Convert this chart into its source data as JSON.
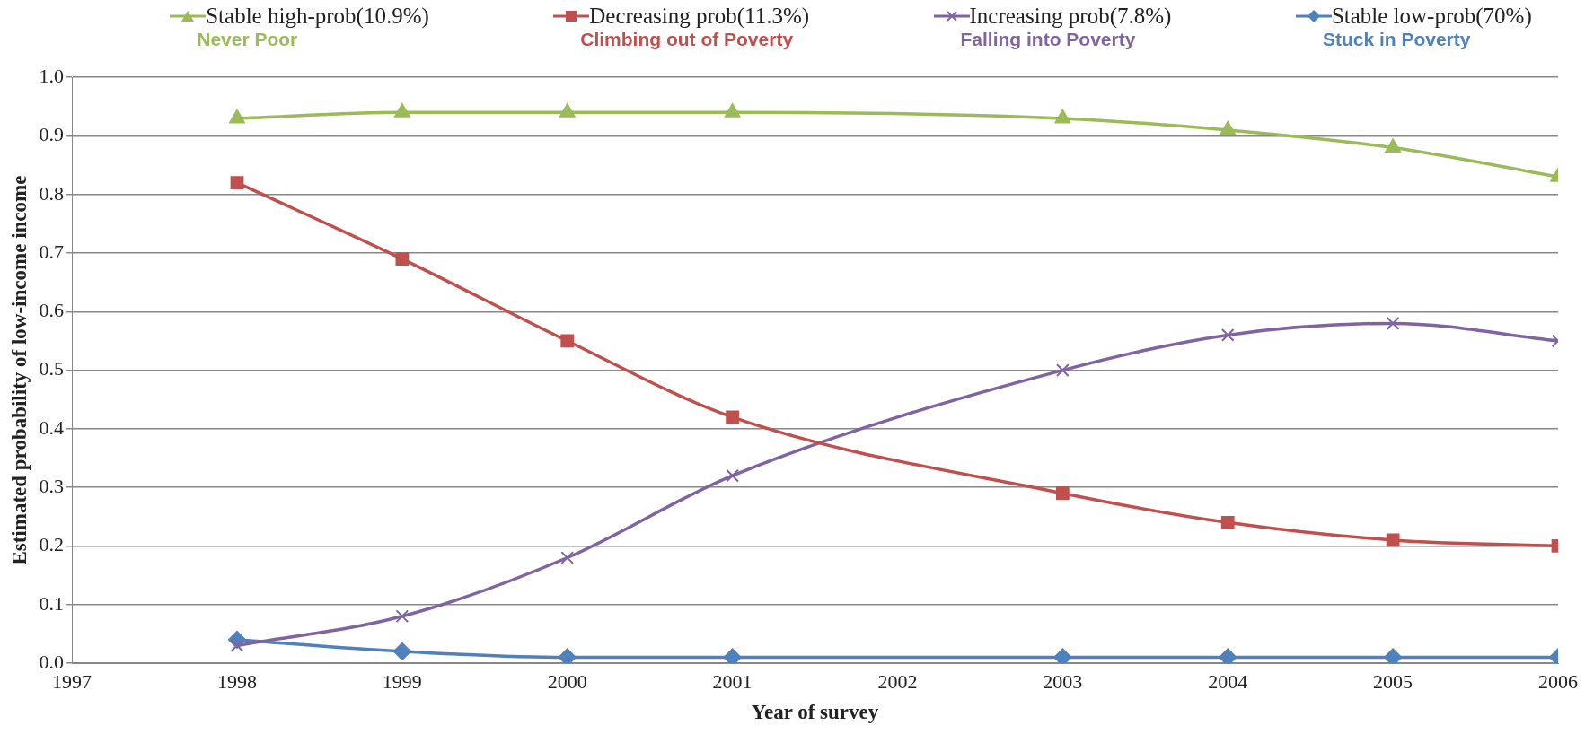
{
  "chart_data": {
    "type": "line",
    "xlabel": "Year of survey",
    "ylabel": "Estimated probability of low-income income",
    "x": [
      1998,
      1999,
      2000,
      2001,
      2003,
      2004,
      2005,
      2006
    ],
    "series": [
      {
        "name": "Stable high-prob(10.9%)",
        "color": "#9bbb59",
        "marker": "triangle",
        "values": [
          0.93,
          0.94,
          0.94,
          0.94,
          0.93,
          0.91,
          0.88,
          0.83
        ]
      },
      {
        "name": "Decreasing prob(11.3%)",
        "color": "#c0504d",
        "marker": "square",
        "values": [
          0.82,
          0.69,
          0.55,
          0.42,
          0.29,
          0.24,
          0.21,
          0.2
        ]
      },
      {
        "name": "Increasing prob(7.8%)",
        "color": "#8064a2",
        "marker": "cross",
        "values": [
          0.03,
          0.08,
          0.18,
          0.32,
          0.5,
          0.56,
          0.58,
          0.55
        ]
      },
      {
        "name": "Stable low-prob(70%)",
        "color": "#4f81bd",
        "marker": "diamond",
        "values": [
          0.04,
          0.02,
          0.01,
          0.01,
          0.01,
          0.01,
          0.01,
          0.01
        ]
      }
    ],
    "annotations": [
      "Never Poor",
      "Climbing out of Poverty",
      "Falling into Poverty",
      "Stuck in Poverty"
    ],
    "xlim": [
      1997,
      2006
    ],
    "xticks": [
      1997,
      1998,
      1999,
      2000,
      2001,
      2002,
      2003,
      2004,
      2005,
      2006
    ],
    "ylim": [
      0,
      1
    ],
    "yticks": [
      {
        "value": 0,
        "label": "0.0"
      },
      {
        "value": 0.1,
        "label": "0.1"
      },
      {
        "value": 0.2,
        "label": "0.2"
      },
      {
        "value": 0.3,
        "label": "0.3"
      },
      {
        "value": 0.4,
        "label": "0.4"
      },
      {
        "value": 0.5,
        "label": "0.5"
      },
      {
        "value": 0.6,
        "label": "0.6"
      },
      {
        "value": 0.7,
        "label": "0.7"
      },
      {
        "value": 0.8,
        "label": "0.8"
      },
      {
        "value": 0.9,
        "label": "0.9"
      },
      {
        "value": 1,
        "label": "1.0"
      }
    ],
    "grid": "y",
    "legend": "top"
  }
}
